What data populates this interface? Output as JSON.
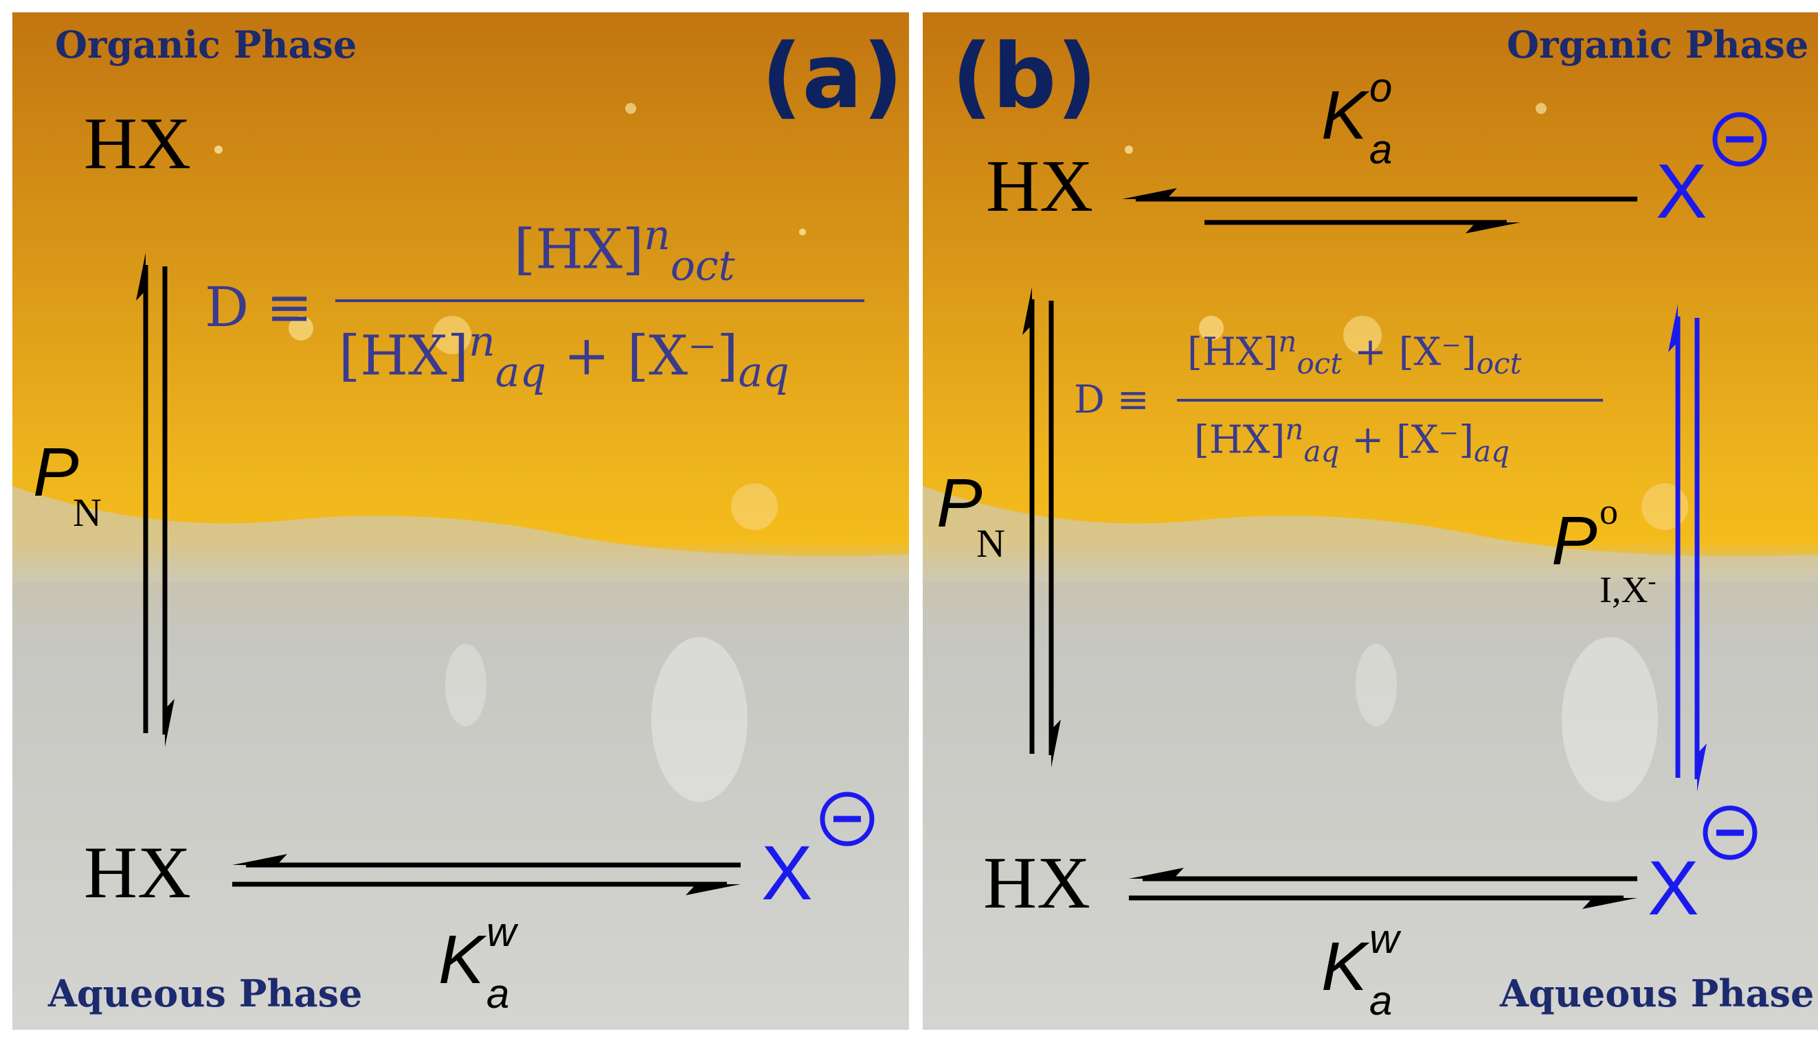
{
  "panel_a": {
    "label": "(a)",
    "organic_phase": "Organic Phase",
    "aqueous_phase": "Aqueous Phase",
    "top_species": "HX",
    "bottom_species": "HX",
    "anion": "X",
    "P_symbol": "P",
    "P_subscript": "N",
    "K_symbol": "K",
    "K_superscript": "w",
    "K_subscript": "a",
    "formula": {
      "lhs": "D ≡",
      "numerator": "[HX]",
      "numerator_sup": "n",
      "numerator_sub": "oct",
      "denominator_hx": "[HX]",
      "denominator_sup": "n",
      "denominator_sub": "aq",
      "plus": "+",
      "denominator_x": "[X⁻]",
      "denominator_x_sub": "aq"
    }
  },
  "panel_b": {
    "label": "(b)",
    "organic_phase": "Organic Phase",
    "aqueous_phase": "Aqueous Phase",
    "top_species": "HX",
    "top_anion": "X",
    "bottom_species": "HX",
    "bottom_anion": "X",
    "Ko_symbol": "K",
    "Ko_superscript": "o",
    "Ko_subscript": "a",
    "Kw_symbol": "K",
    "Kw_superscript": "w",
    "Kw_subscript": "a",
    "PN_symbol": "P",
    "PN_subscript": "N",
    "PI_symbol": "P",
    "PI_superscript": "o",
    "PI_subscript": "I,X",
    "PI_subscript_sup": "-",
    "formula": {
      "lhs": "D ≡",
      "num_hx": "[HX]",
      "num_hx_sup": "n",
      "num_hx_sub": "oct",
      "num_plus": "+",
      "num_x": "[X⁻]",
      "num_x_sub": "oct",
      "den_hx": "[HX]",
      "den_hx_sup": "n",
      "den_hx_sub": "aq",
      "den_plus": "+",
      "den_x": "[X⁻]",
      "den_x_sub": "aq"
    }
  },
  "colors": {
    "organic_top": "#c47a10",
    "organic_mid": "#e0a31a",
    "organic_band": "#f2b61c",
    "aqueous": "#c9c9c4",
    "navy_text": "#1c2a6e",
    "formula": "#3a3a8e",
    "anion_blue": "#1a1aee",
    "arrow_black": "#000000",
    "arrow_blue": "#1a1aee"
  }
}
